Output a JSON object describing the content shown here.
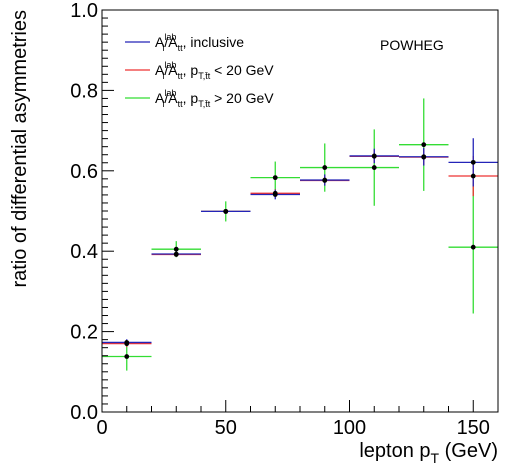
{
  "chart_data": {
    "type": "scatter",
    "xlabel": "lepton p",
    "xlabel_sub": "T",
    "xlabel_unit": "(GeV)",
    "ylabel": "ratio of differential asymmetries",
    "annotation": "POWHEG",
    "xlim": [
      0,
      160
    ],
    "ylim": [
      0,
      1.0
    ],
    "x_ticks": [
      0,
      50,
      100,
      150
    ],
    "x_tick_labels": [
      "0",
      "50",
      "100",
      "150"
    ],
    "y_ticks": [
      0,
      0.2,
      0.4,
      0.6,
      0.8,
      1.0
    ],
    "y_tick_labels": [
      "0.0",
      "0.2",
      "0.4",
      "0.6",
      "0.8",
      "1.0"
    ],
    "grid": false,
    "legend_position": "top-left",
    "bins": [
      [
        0,
        20
      ],
      [
        20,
        40
      ],
      [
        40,
        60
      ],
      [
        60,
        80
      ],
      [
        80,
        100
      ],
      [
        100,
        120
      ],
      [
        120,
        140
      ],
      [
        140,
        160
      ]
    ],
    "series": [
      {
        "name": "inclusive",
        "legend_main": "A",
        "legend_sub1": "l",
        "legend_sup1": "lab",
        "legend_mid": "/A",
        "legend_sub2": "tt",
        "legend_tail": ", inclusive",
        "color": "#2424b8",
        "values": [
          0.173,
          0.393,
          0.499,
          0.541,
          0.577,
          0.637,
          0.635,
          0.621
        ],
        "errors": [
          0.008,
          0.006,
          0.006,
          0.012,
          0.014,
          0.018,
          0.022,
          0.06
        ]
      },
      {
        "name": "p_T,tt < 20 GeV",
        "legend_main": "A",
        "legend_sub1": "l",
        "legend_sup1": "lab",
        "legend_mid": "/A",
        "legend_sub2": "tt",
        "legend_tail": ", p",
        "legend_sub3": "T,t̄t",
        "legend_tail2": " < 20 GeV",
        "color": "#ee3333",
        "values": [
          0.17,
          0.392,
          0.499,
          0.544,
          0.576,
          0.636,
          0.634,
          0.587
        ],
        "errors": [
          0.008,
          0.006,
          0.006,
          0.01,
          0.012,
          0.016,
          0.02,
          0.05
        ]
      },
      {
        "name": "p_T,tt > 20 GeV",
        "legend_main": "A",
        "legend_sub1": "l",
        "legend_sup1": "lab",
        "legend_mid": "/A",
        "legend_sub2": "tt",
        "legend_tail": ", p",
        "legend_sub3": "T,t̄t",
        "legend_tail2": " > 20 GeV",
        "color": "#33dd33",
        "values": [
          0.138,
          0.405,
          0.499,
          0.583,
          0.608,
          0.608,
          0.665,
          0.41
        ],
        "errors": [
          0.035,
          0.02,
          0.025,
          0.04,
          0.06,
          0.095,
          0.115,
          0.165
        ]
      }
    ]
  }
}
